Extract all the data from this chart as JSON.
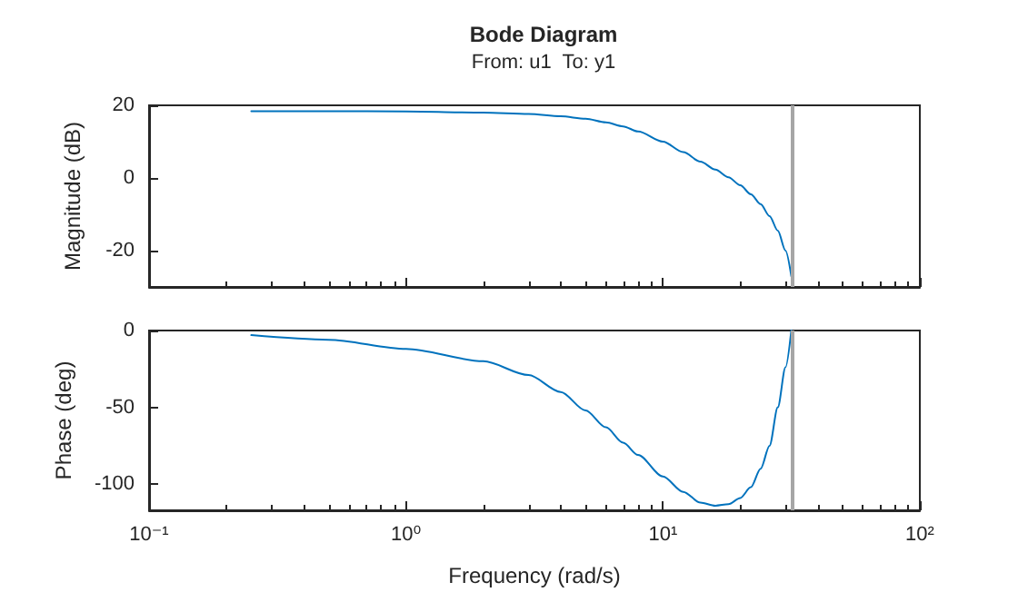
{
  "chart_data": [
    {
      "type": "line",
      "title": "Bode Diagram",
      "subtitle": "From: u1  To: y1",
      "ylabel": "Magnitude (dB)",
      "x": [
        0.25,
        0.5,
        1,
        2,
        3,
        4,
        5,
        6,
        7,
        8,
        10,
        12,
        14,
        16,
        18,
        20,
        22,
        24,
        26,
        28,
        30,
        31.6
      ],
      "series": [
        {
          "color": "#0072bd",
          "values": [
            18.4,
            18.4,
            18.3,
            18.0,
            17.6,
            17.0,
            16.3,
            15.3,
            14.2,
            12.8,
            10,
            7.1,
            4.5,
            2.3,
            0.2,
            -2.0,
            -4.5,
            -7.2,
            -10.5,
            -14.5,
            -20,
            -27
          ]
        }
      ],
      "xlim": [
        0.1,
        100
      ],
      "xticks": [
        {
          "value": 0.1,
          "label": null
        },
        {
          "value": 1,
          "label": null
        },
        {
          "value": 10,
          "label": null
        },
        {
          "value": 100,
          "label": null
        }
      ],
      "ylim": [
        -30,
        20
      ],
      "yticks": [
        -20,
        0,
        20
      ],
      "log": "x",
      "marker": "none",
      "tick_labels": "y",
      "ref_lines": [
        {
          "axis": "x",
          "value": 31.6,
          "color": "#a6a6a6"
        }
      ]
    },
    {
      "type": "line",
      "xlabel": "Frequency (rad/s)",
      "ylabel": "Phase (deg)",
      "x": [
        0.25,
        0.5,
        1,
        2,
        3,
        4,
        5,
        6,
        7,
        8,
        10,
        12,
        14,
        16,
        18,
        20,
        22,
        24,
        26,
        28,
        30,
        31.6
      ],
      "series": [
        {
          "color": "#0072bd",
          "values": [
            -3,
            -6,
            -12,
            -20,
            -29,
            -40,
            -52,
            -63,
            -73,
            -81,
            -95,
            -105,
            -112,
            -114,
            -113,
            -109,
            -102,
            -90,
            -75,
            -50,
            -24,
            0
          ]
        }
      ],
      "xlim": [
        0.1,
        100
      ],
      "xticks": [
        {
          "value": 0.1,
          "label": "10⁻¹"
        },
        {
          "value": 1,
          "label": "10⁰"
        },
        {
          "value": 10,
          "label": "10¹"
        },
        {
          "value": 100,
          "label": "10²"
        }
      ],
      "ylim": [
        -117,
        0
      ],
      "yticks": [
        -100,
        -50,
        0
      ],
      "log": "x",
      "marker": "none",
      "ref_lines": [
        {
          "axis": "x",
          "value": 31.6,
          "color": "#a6a6a6"
        }
      ]
    }
  ]
}
